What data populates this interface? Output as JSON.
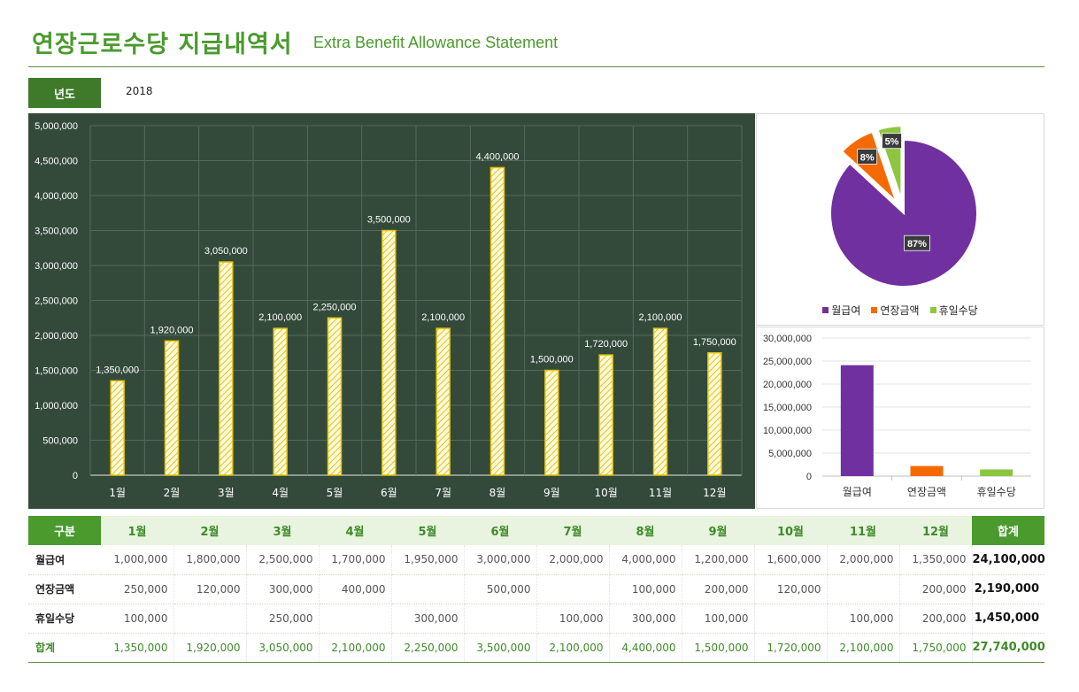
{
  "header": {
    "title_ko": "연장근로수당 지급내역서",
    "title_en": "Extra Benefit Allowance Statement"
  },
  "year": {
    "label": "년도",
    "value": "2018"
  },
  "colors": {
    "green_dark": "#3e7a2a",
    "green": "#4a9a2e",
    "panel_bg": "#334a3b",
    "bar_fill": "#fff7cc",
    "bar_stroke": "#e0b800",
    "purple": "#7030a0",
    "orange": "#f56a00",
    "lime": "#8cc63f"
  },
  "chart_data": [
    {
      "type": "bar",
      "categories": [
        "1월",
        "2월",
        "3월",
        "4월",
        "5월",
        "6월",
        "7월",
        "8월",
        "9월",
        "10월",
        "11월",
        "12월"
      ],
      "values": [
        1350000,
        1920000,
        3050000,
        2100000,
        2250000,
        3500000,
        2100000,
        4400000,
        1500000,
        1720000,
        2100000,
        1750000
      ],
      "data_labels": [
        "1,350,000",
        "1,920,000",
        "3,050,000",
        "2,100,000",
        "2,250,000",
        "3,500,000",
        "2,100,000",
        "4,400,000",
        "1,500,000",
        "1,720,000",
        "2,100,000",
        "1,750,000"
      ],
      "yticks": [
        "0",
        "500,000",
        "1,000,000",
        "1,500,000",
        "2,000,000",
        "2,500,000",
        "3,000,000",
        "3,500,000",
        "4,000,000",
        "4,500,000",
        "5,000,000"
      ],
      "ylim": [
        0,
        5000000
      ],
      "grid": true
    },
    {
      "type": "pie",
      "categories": [
        "월급여",
        "연장금액",
        "휴일수당"
      ],
      "values": [
        24100000,
        2190000,
        1450000
      ],
      "data_labels": [
        "87%",
        "8%",
        "5%"
      ],
      "colors": [
        "#7030a0",
        "#f56a00",
        "#8cc63f"
      ],
      "legend": "bottom"
    },
    {
      "type": "bar",
      "categories": [
        "월급여",
        "연장금액",
        "휴일수당"
      ],
      "values": [
        24100000,
        2190000,
        1450000
      ],
      "colors": [
        "#7030a0",
        "#f56a00",
        "#8cc63f"
      ],
      "yticks": [
        "0",
        "5,000,000",
        "10,000,000",
        "15,000,000",
        "20,000,000",
        "25,000,000",
        "30,000,000"
      ],
      "ylim": [
        0,
        30000000
      ],
      "grid": true
    }
  ],
  "table": {
    "corner": "구분",
    "months": [
      "1월",
      "2월",
      "3월",
      "4월",
      "5월",
      "6월",
      "7월",
      "8월",
      "9월",
      "10월",
      "11월",
      "12월"
    ],
    "total_header": "합계",
    "rows": [
      {
        "label": "월급여",
        "cells": [
          "1,000,000",
          "1,800,000",
          "2,500,000",
          "1,700,000",
          "1,950,000",
          "3,000,000",
          "2,000,000",
          "4,000,000",
          "1,200,000",
          "1,600,000",
          "2,000,000",
          "1,350,000"
        ],
        "total": "24,100,000"
      },
      {
        "label": "연장금액",
        "cells": [
          "250,000",
          "120,000",
          "300,000",
          "400,000",
          "",
          "500,000",
          "",
          "100,000",
          "200,000",
          "120,000",
          "",
          "200,000"
        ],
        "total": "2,190,000"
      },
      {
        "label": "휴일수당",
        "cells": [
          "100,000",
          "",
          "250,000",
          "",
          "300,000",
          "",
          "100,000",
          "300,000",
          "100,000",
          "",
          "100,000",
          "200,000"
        ],
        "total": "1,450,000"
      },
      {
        "label": "합계",
        "cells": [
          "1,350,000",
          "1,920,000",
          "3,050,000",
          "2,100,000",
          "2,250,000",
          "3,500,000",
          "2,100,000",
          "4,400,000",
          "1,500,000",
          "1,720,000",
          "2,100,000",
          "1,750,000"
        ],
        "total": "27,740,000"
      }
    ]
  }
}
